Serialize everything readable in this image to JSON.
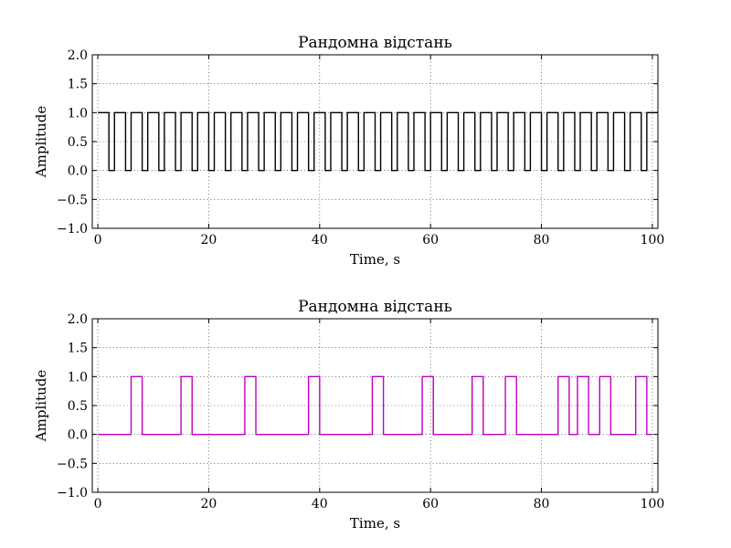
{
  "chart_data": [
    {
      "type": "line",
      "title": "Рандомна відстань",
      "xlabel": "Time, s",
      "ylabel": "Amplitude",
      "xlim": [
        -1,
        101
      ],
      "ylim": [
        -1.0,
        2.0
      ],
      "xticks": [
        0,
        20,
        40,
        60,
        80,
        100
      ],
      "xtick_labels": [
        "0",
        "20",
        "40",
        "60",
        "80",
        "100"
      ],
      "yticks": [
        -1.0,
        -0.5,
        0.0,
        0.5,
        1.0,
        1.5,
        2.0
      ],
      "ytick_labels": [
        "−1.0",
        "−0.5",
        "0.0",
        "0.5",
        "1.0",
        "1.5",
        "2.0"
      ],
      "grid": true,
      "color": "#000000",
      "series": [
        {
          "step": "post",
          "x": [
            0,
            2,
            3,
            5,
            6,
            8,
            9,
            11,
            12,
            14,
            15,
            17,
            18,
            20,
            21,
            23,
            24,
            26,
            27,
            29,
            30,
            32,
            33,
            35,
            36,
            38,
            39,
            41,
            42,
            44,
            45,
            47,
            48,
            50,
            51,
            53,
            54,
            56,
            57,
            59,
            60,
            62,
            63,
            65,
            66,
            68,
            69,
            71,
            72,
            74,
            75,
            77,
            78,
            80,
            81,
            83,
            84,
            86,
            87,
            89,
            90,
            92,
            93,
            95,
            96,
            98,
            99,
            101
          ],
          "y": [
            1,
            0,
            1,
            0,
            1,
            0,
            1,
            0,
            1,
            0,
            1,
            0,
            1,
            0,
            1,
            0,
            1,
            0,
            1,
            0,
            1,
            0,
            1,
            0,
            1,
            0,
            1,
            0,
            1,
            0,
            1,
            0,
            1,
            0,
            1,
            0,
            1,
            0,
            1,
            0,
            1,
            0,
            1,
            0,
            1,
            0,
            1,
            0,
            1,
            0,
            1,
            0,
            1,
            0,
            1,
            0,
            1,
            0,
            1,
            0,
            1,
            0,
            1,
            0,
            1,
            0,
            1,
            1
          ]
        }
      ]
    },
    {
      "type": "line",
      "title": "Рандомна відстань",
      "xlabel": "Time, s",
      "ylabel": "Amplitude",
      "xlim": [
        -1,
        101
      ],
      "ylim": [
        -1.0,
        2.0
      ],
      "xticks": [
        0,
        20,
        40,
        60,
        80,
        100
      ],
      "xtick_labels": [
        "0",
        "20",
        "40",
        "60",
        "80",
        "100"
      ],
      "yticks": [
        -1.0,
        -0.5,
        0.0,
        0.5,
        1.0,
        1.5,
        2.0
      ],
      "ytick_labels": [
        "−1.0",
        "−0.5",
        "0.0",
        "0.5",
        "1.0",
        "1.5",
        "2.0"
      ],
      "grid": true,
      "color": "#bf00bf",
      "series": [
        {
          "step": "post",
          "x": [
            0,
            6,
            8,
            15,
            17,
            26.5,
            28.5,
            38,
            40,
            49.5,
            51.5,
            58.5,
            60.5,
            67.5,
            69.5,
            73.5,
            75.5,
            83,
            85,
            86.5,
            88.5,
            90.5,
            92.5,
            97,
            99,
            100
          ],
          "y": [
            0,
            1,
            0,
            1,
            0,
            1,
            0,
            1,
            0,
            1,
            0,
            1,
            0,
            1,
            0,
            1,
            0,
            1,
            0,
            1,
            0,
            1,
            0,
            1,
            0,
            0
          ]
        }
      ]
    }
  ]
}
